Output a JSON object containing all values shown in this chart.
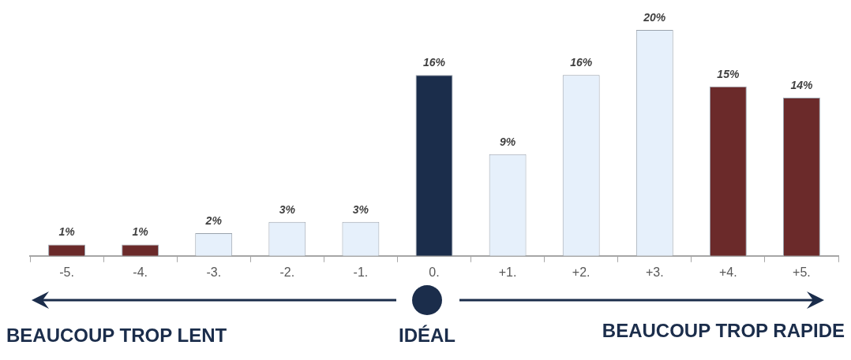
{
  "chart_data": {
    "type": "bar",
    "categories": [
      "-5.",
      "-4.",
      "-3.",
      "-2.",
      "-1.",
      "0.",
      "+1.",
      "+2.",
      "+3.",
      "+4.",
      "+5."
    ],
    "values": [
      1,
      1,
      2,
      3,
      3,
      16,
      9,
      16,
      20,
      15,
      14
    ],
    "colors": [
      "#6b2a2a",
      "#6b2a2a",
      "#e6f0fb",
      "#e6f0fb",
      "#e6f0fb",
      "#1b2d4b",
      "#e6f0fb",
      "#e6f0fb",
      "#e6f0fb",
      "#6b2a2a",
      "#6b2a2a"
    ],
    "value_labels": [
      "1%",
      "1%",
      "2%",
      "3%",
      "3%",
      "16%",
      "9%",
      "16%",
      "20%",
      "15%",
      "14%"
    ],
    "grid": false,
    "legend": false,
    "annotations": [
      "BEAUCOUP TROP LENT",
      "IDÉAL",
      "BEAUCOUP TROP RAPIDE"
    ]
  }
}
